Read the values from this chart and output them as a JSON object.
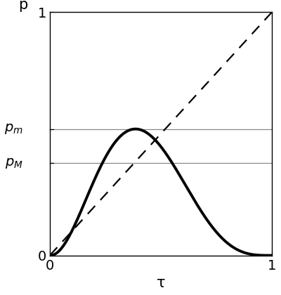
{
  "title": "",
  "xlabel": "τ",
  "ylabel": "p",
  "xlim": [
    0,
    1
  ],
  "ylim": [
    0,
    1
  ],
  "xticks": [
    0,
    1
  ],
  "yticks": [
    0,
    1
  ],
  "xlabel_fontsize": 15,
  "ylabel_fontsize": 15,
  "tick_fontsize": 14,
  "p_m_value": 0.52,
  "p_M_value": 0.38,
  "curve_color": "#000000",
  "curve_lw": 2.8,
  "dashed_color": "#000000",
  "dashed_lw": 1.6,
  "hline_color": "#888888",
  "hline_lw": 0.9,
  "curve_alpha_param": 2.2,
  "curve_beta_param": 3.5,
  "bg_color": "#ffffff",
  "label_fontsize": 14
}
